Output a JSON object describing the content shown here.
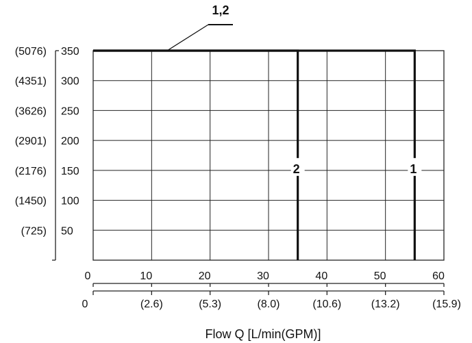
{
  "chart_data": {
    "type": "line",
    "title": "",
    "xlabel": "Flow Q [L/min(GPM)]",
    "ylabel": "",
    "xlim": [
      0,
      60
    ],
    "ylim": [
      0,
      350
    ],
    "grid": true,
    "x_ticks_primary": [
      "0",
      "10",
      "20",
      "30",
      "40",
      "50",
      "60"
    ],
    "x_ticks_secondary": [
      "0",
      "(2.6)",
      "(5.3)",
      "(8.0)",
      "(10.6)",
      "(13.2)",
      "(15.9)"
    ],
    "y_ticks_primary": [
      "50",
      "100",
      "150",
      "200",
      "250",
      "300",
      "350"
    ],
    "y_ticks_secondary": [
      "(725)",
      "(1450)",
      "(2176)",
      "(2901)",
      "(3626)",
      "(4351)",
      "(5076)"
    ],
    "series": [
      {
        "name": "1",
        "points": [
          [
            0,
            350
          ],
          [
            55,
            350
          ],
          [
            55,
            0
          ]
        ]
      },
      {
        "name": "2",
        "points": [
          [
            0,
            350
          ],
          [
            35,
            350
          ],
          [
            35,
            0
          ]
        ]
      }
    ],
    "shared_label": "1,2"
  }
}
